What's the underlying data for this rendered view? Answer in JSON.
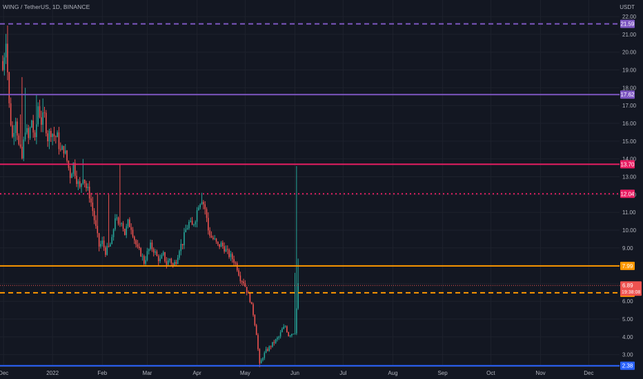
{
  "header": {
    "title": "WING / TetherUS, 1D, BINANCE",
    "unit": "USDT"
  },
  "chart_data": {
    "type": "candlestick",
    "y_ticks": [
      3,
      4,
      5,
      6,
      7,
      8,
      9,
      10,
      11,
      12,
      13,
      14,
      15,
      16,
      17,
      18,
      19,
      20,
      21,
      22
    ],
    "y_tick_labels": [
      "3.00",
      "4.00",
      "5.00",
      "6.00",
      "7.00",
      "8.00",
      "9.00",
      "10.00",
      "11.00",
      "12.00",
      "13.00",
      "14.00",
      "15.00",
      "16.00",
      "17.00",
      "18.00",
      "19.00",
      "20.00",
      "21.00",
      "22.00"
    ],
    "x_labels": [
      {
        "label": "Dec",
        "x": 0.5
      },
      {
        "label": "2022",
        "x": 31
      },
      {
        "label": "Feb",
        "x": 62
      },
      {
        "label": "Mar",
        "x": 90
      },
      {
        "label": "Apr",
        "x": 121
      },
      {
        "label": "May",
        "x": 151
      },
      {
        "label": "Jun",
        "x": 182
      },
      {
        "label": "Jul",
        "x": 212
      },
      {
        "label": "Aug",
        "x": 243
      },
      {
        "label": "Sep",
        "x": 274
      },
      {
        "label": "Oct",
        "x": 304
      },
      {
        "label": "Nov",
        "x": 335
      },
      {
        "label": "Dec",
        "x": 365
      }
    ],
    "levels": [
      {
        "value": 21.59,
        "label": "21.59",
        "color": "#7e57c2",
        "style": "dashed"
      },
      {
        "value": 17.62,
        "label": "17.62",
        "color": "#7e57c2",
        "style": "solid"
      },
      {
        "value": 13.7,
        "label": "13.70",
        "color": "#e91e63",
        "style": "solid"
      },
      {
        "value": 12.04,
        "label": "12.04",
        "color": "#e91e63",
        "style": "dotted"
      },
      {
        "value": 7.99,
        "label": "7.99",
        "color": "#ff9800",
        "style": "solid"
      },
      {
        "value": 6.48,
        "label": "6.48",
        "color": "#ff9800",
        "style": "dashed"
      },
      {
        "value": 2.38,
        "label": "2.38",
        "color": "#2962ff",
        "style": "solid"
      }
    ],
    "current_price": {
      "value": 6.89,
      "label": "6.89",
      "countdown": "19:38:08",
      "color": "#ef5350"
    },
    "colors": {
      "up": "#26a69a",
      "down": "#ef5350",
      "grid": "#1e222d",
      "text": "#b2b5be"
    },
    "close_anchors": [
      [
        0,
        19.0
      ],
      [
        2,
        20.9
      ],
      [
        4,
        17.0
      ],
      [
        6,
        15.2
      ],
      [
        8,
        16.4
      ],
      [
        10,
        14.7
      ],
      [
        12,
        14.0
      ],
      [
        14,
        15.8
      ],
      [
        16,
        15.1
      ],
      [
        18,
        16.2
      ],
      [
        20,
        14.9
      ],
      [
        22,
        17.0
      ],
      [
        24,
        16.1
      ],
      [
        26,
        16.4
      ],
      [
        28,
        15.2
      ],
      [
        30,
        15.6
      ],
      [
        32,
        15.3
      ],
      [
        34,
        15.2
      ],
      [
        36,
        14.4
      ],
      [
        38,
        14.6
      ],
      [
        40,
        13.9
      ],
      [
        42,
        13.1
      ],
      [
        44,
        13.7
      ],
      [
        46,
        12.9
      ],
      [
        48,
        12.3
      ],
      [
        50,
        13.1
      ],
      [
        52,
        12.4
      ],
      [
        54,
        12.0
      ],
      [
        56,
        11.1
      ],
      [
        58,
        10.1
      ],
      [
        60,
        9.1
      ],
      [
        62,
        9.3
      ],
      [
        64,
        8.8
      ],
      [
        66,
        9.0
      ],
      [
        68,
        9.4
      ],
      [
        70,
        10.8
      ],
      [
        72,
        10.2
      ],
      [
        74,
        10.6
      ],
      [
        76,
        9.8
      ],
      [
        78,
        10.4
      ],
      [
        80,
        10.2
      ],
      [
        82,
        9.5
      ],
      [
        84,
        8.9
      ],
      [
        86,
        8.7
      ],
      [
        88,
        8.2
      ],
      [
        90,
        8.7
      ],
      [
        92,
        9.1
      ],
      [
        94,
        8.9
      ],
      [
        96,
        8.5
      ],
      [
        98,
        8.3
      ],
      [
        100,
        8.6
      ],
      [
        102,
        8.1
      ],
      [
        104,
        8.4
      ],
      [
        106,
        8.0
      ],
      [
        108,
        8.3
      ],
      [
        110,
        9.0
      ],
      [
        112,
        9.3
      ],
      [
        114,
        10.0
      ],
      [
        116,
        10.4
      ],
      [
        118,
        10.2
      ],
      [
        120,
        10.7
      ],
      [
        122,
        11.5
      ],
      [
        124,
        11.8
      ],
      [
        126,
        11.2
      ],
      [
        128,
        10.0
      ],
      [
        130,
        9.6
      ],
      [
        132,
        9.4
      ],
      [
        134,
        9.1
      ],
      [
        136,
        9.2
      ],
      [
        138,
        9.0
      ],
      [
        140,
        8.7
      ],
      [
        142,
        8.5
      ],
      [
        144,
        8.3
      ],
      [
        146,
        7.9
      ],
      [
        148,
        7.3
      ],
      [
        150,
        7.1
      ],
      [
        152,
        6.6
      ],
      [
        154,
        6.1
      ],
      [
        156,
        5.3
      ],
      [
        158,
        4.2
      ],
      [
        160,
        2.4
      ],
      [
        162,
        2.9
      ],
      [
        164,
        3.2
      ],
      [
        166,
        3.4
      ],
      [
        168,
        3.6
      ],
      [
        170,
        3.8
      ],
      [
        172,
        4.0
      ],
      [
        174,
        4.4
      ],
      [
        176,
        4.6
      ],
      [
        178,
        4.1
      ],
      [
        180,
        4.2
      ],
      [
        182,
        4.3
      ],
      [
        184,
        6.9
      ]
    ],
    "spikes": [
      {
        "day": 3,
        "high": 21.5
      },
      {
        "day": 11,
        "high": 16.5
      },
      {
        "day": 12,
        "high": 18.6
      },
      {
        "day": 14,
        "high": 18.0
      },
      {
        "day": 21,
        "high": 17.6
      },
      {
        "day": 25,
        "high": 17.4
      },
      {
        "day": 50,
        "high": 14.0
      },
      {
        "day": 59,
        "high": 12.1
      },
      {
        "day": 66,
        "high": 12.0
      },
      {
        "day": 73,
        "high": 13.7
      },
      {
        "day": 88,
        "high": 7.2
      },
      {
        "day": 124,
        "high": 12.1
      },
      {
        "day": 128,
        "high": 11.0
      },
      {
        "day": 160,
        "low": 2.3
      },
      {
        "day": 182,
        "high": 7.6
      },
      {
        "day": 183,
        "high": 13.6
      },
      {
        "day": 184,
        "high": 8.4
      }
    ]
  }
}
